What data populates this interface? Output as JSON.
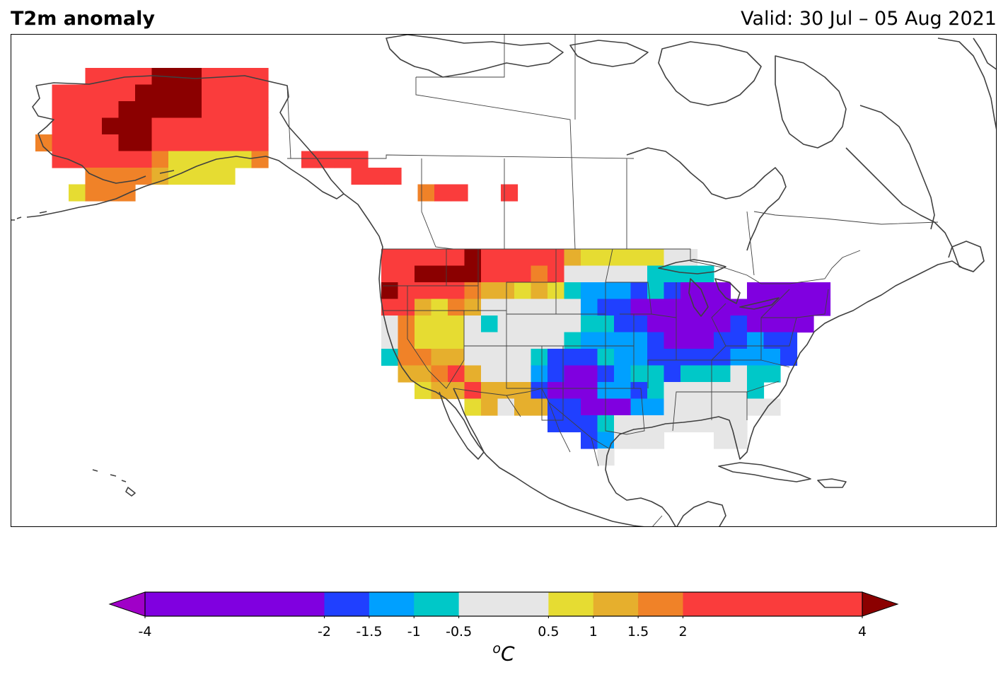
{
  "header": {
    "title": "T2m anomaly",
    "valid": "Valid: 30 Jul – 05 Aug 2021"
  },
  "colorbar": {
    "unit_base": "C",
    "unit_sup": "o",
    "ticks": [
      "-4",
      "-2",
      "-1.5",
      "-1",
      "-0.5",
      "0.5",
      "1",
      "1.5",
      "2",
      "4"
    ],
    "bins": [
      {
        "from": -4,
        "to": -2,
        "color": "#8000e0"
      },
      {
        "from": -2,
        "to": -1.5,
        "color": "#2040ff"
      },
      {
        "from": -1.5,
        "to": -1,
        "color": "#00a0ff"
      },
      {
        "from": -1,
        "to": -0.5,
        "color": "#00c8c8"
      },
      {
        "from": -0.5,
        "to": 0.5,
        "color": "#e6e6e6"
      },
      {
        "from": 0.5,
        "to": 1,
        "color": "#e6dc32"
      },
      {
        "from": 1,
        "to": 1.5,
        "color": "#e6af2d"
      },
      {
        "from": 1.5,
        "to": 2,
        "color": "#f08228"
      },
      {
        "from": 2,
        "to": 4,
        "color": "#fa3c3c"
      }
    ],
    "under_color": "#a000c8",
    "over_color": "#8b0000"
  },
  "map": {
    "region": "North America",
    "coastline_color": "#404040",
    "grid_legend": {
      "P": "#8000e0",
      "B": "#2040ff",
      "L": "#00a0ff",
      "C": "#00c8c8",
      "G": "#e6e6e6",
      "Y": "#e6dc32",
      "O": "#e6af2d",
      "N": "#f08228",
      "R": "#fa3c3c",
      "D": "#8b0000"
    },
    "alaska_rows": [
      {
        "row": 0,
        "col0": 0,
        "cells": "...RRRRDDDRRRR"
      },
      {
        "row": 1,
        "col0": 0,
        "cells": ".RRRRRDDDDRRRR"
      },
      {
        "row": 2,
        "col0": 0,
        "cells": ".RRRRDDDDDRRRR"
      },
      {
        "row": 3,
        "col0": 0,
        "cells": ".RRRDDDRRRRRRR"
      },
      {
        "row": 4,
        "col0": 0,
        "cells": "NRRRRDDRRRRRRR"
      },
      {
        "row": 5,
        "col0": 0,
        "cells": ".RRRRRRNYYYYYN..RRRR"
      },
      {
        "row": 6,
        "col0": 0,
        "cells": "...NNNNOYYYY.......RRR"
      },
      {
        "row": 7,
        "col0": 0,
        "cells": "..YNNN.................NRR..R"
      }
    ],
    "conus_rows": [
      {
        "row": 0,
        "cells": "R R R R R D R R R R R O Y Y Y Y Y G G"
      },
      {
        "row": 1,
        "cells": "R R D D D D R R R N R G G G G G C C C C"
      },
      {
        "row": 2,
        "cells": "D R R R R N O O Y O Y C L L L B C B P P P . P P P P P"
      },
      {
        "row": 3,
        "cells": "R R O Y N O G G G G G G L B B P P P P P P P P P P P P"
      },
      {
        "row": 4,
        "cells": "G N Y Y Y G C G G G G G C C B B P P P P P B P P P P"
      },
      {
        "row": 5,
        "cells": "G N Y Y Y G G G G G G C L L L L B P P P B B L B B"
      },
      {
        "row": 6,
        "cells": "C N N O O G G G G C B B B C L L B B B B B L L L B"
      },
      {
        "row": 7,
        "cells": "O O N R O G G G L B P P B L C C B C C C G C C"
      },
      {
        "row": 8,
        "cells": "Y O O R O O O B P P P L L B C G G G G G C"
      },
      {
        "row": 9,
        "cells": "Y O G O O B B P P P L L G G G G G G G"
      },
      {
        "row": 10,
        "cells": "B B B C G G G G G G G G"
      },
      {
        "row": 11,
        "cells": "B L G G G"
      },
      {
        "row": 12,
        "cells": "G"
      }
    ]
  }
}
